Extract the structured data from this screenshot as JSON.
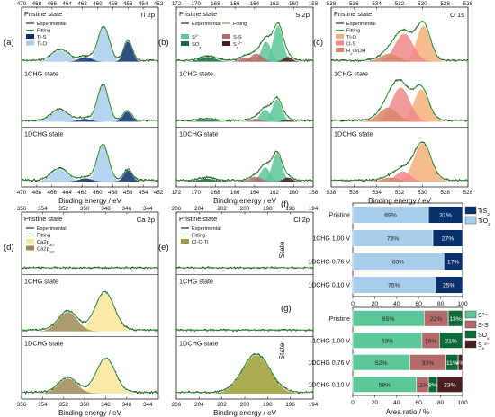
{
  "colors": {
    "experimental": "#000000",
    "fitting": "#2f9e2f",
    "ti_s": "#08306b",
    "ti_o": "#a8cdec",
    "s2": "#5cc79a",
    "sox": "#0d6b39",
    "s_s": "#b56a6a",
    "sx2": "#4a1e1e",
    "o_tio": "#f4b07a",
    "o_os": "#f08a8a",
    "o_h2o": "#d9876b",
    "ca_p12": "#9c8a55",
    "ca_p32": "#fbe69a",
    "cl_oti": "#9c9c33"
  },
  "chart_data": [
    {
      "type": "area",
      "panel": "(a)",
      "element": "Ti 2p",
      "xlabel": "Binding energy / eV",
      "xlim": [
        470,
        452
      ],
      "ticks": [
        "470",
        "468",
        "466",
        "464",
        "462",
        "460",
        "458",
        "456",
        "454",
        "452"
      ],
      "states": [
        "Pristine state",
        "1CHG state",
        "1DCHG state"
      ],
      "legend": [
        "Experimental",
        "Fitting",
        "Ti-S",
        "Ti-O"
      ],
      "components": {
        "Pristine state": [
          {
            "name": "Ti-O",
            "center": 459.2,
            "width": 0.75,
            "amp": 0.85
          },
          {
            "name": "Ti-O",
            "center": 464.9,
            "width": 1.1,
            "amp": 0.28
          },
          {
            "name": "Ti-S",
            "center": 456.0,
            "width": 0.55,
            "amp": 0.5
          },
          {
            "name": "Ti-S",
            "center": 461.6,
            "width": 0.8,
            "amp": 0.12
          }
        ],
        "1CHG state": [
          {
            "name": "Ti-O",
            "center": 459.3,
            "width": 0.72,
            "amp": 0.9
          },
          {
            "name": "Ti-O",
            "center": 465.0,
            "width": 1.1,
            "amp": 0.28
          },
          {
            "name": "Ti-S",
            "center": 456.1,
            "width": 0.55,
            "amp": 0.25
          },
          {
            "name": "Ti-S",
            "center": 461.7,
            "width": 0.8,
            "amp": 0.07
          }
        ],
        "1DCHG state": [
          {
            "name": "Ti-O",
            "center": 459.3,
            "width": 0.75,
            "amp": 0.9
          },
          {
            "name": "Ti-O",
            "center": 465.0,
            "width": 1.1,
            "amp": 0.3
          },
          {
            "name": "Ti-S",
            "center": 456.0,
            "width": 0.55,
            "amp": 0.28
          },
          {
            "name": "Ti-S",
            "center": 461.6,
            "width": 0.8,
            "amp": 0.08
          }
        ]
      }
    },
    {
      "type": "area",
      "panel": "(b)",
      "element": "S 2p",
      "xlabel": "Binding energy / eV",
      "xlim": [
        172,
        158
      ],
      "ticks": [
        "172",
        "170",
        "168",
        "166",
        "164",
        "162",
        "160",
        "158"
      ],
      "states": [
        "Pristine state",
        "1CHG state",
        "1DCHG state"
      ],
      "legend": [
        "Experimental",
        "Fitting",
        "S2-",
        "S-S",
        "SOx",
        "Sx2-"
      ],
      "components": {
        "Pristine state": [
          {
            "name": "S2-",
            "center": 161.6,
            "width": 0.5,
            "amp": 0.9
          },
          {
            "name": "S2-",
            "center": 162.8,
            "width": 0.5,
            "amp": 0.5
          },
          {
            "name": "S-S",
            "center": 163.8,
            "width": 0.6,
            "amp": 0.2
          },
          {
            "name": "S-S",
            "center": 165.0,
            "width": 0.6,
            "amp": 0.1
          },
          {
            "name": "Sx2-",
            "center": 160.6,
            "width": 0.45,
            "amp": 0.12
          },
          {
            "name": "SOx",
            "center": 168.8,
            "width": 0.8,
            "amp": 0.12
          }
        ],
        "1CHG state": [
          {
            "name": "S2-",
            "center": 161.7,
            "width": 0.5,
            "amp": 0.55
          },
          {
            "name": "S2-",
            "center": 162.9,
            "width": 0.5,
            "amp": 0.3
          },
          {
            "name": "S-S",
            "center": 163.9,
            "width": 0.6,
            "amp": 0.07
          },
          {
            "name": "Sx2-",
            "center": 160.7,
            "width": 0.45,
            "amp": 0.05
          },
          {
            "name": "SOx",
            "center": 168.9,
            "width": 0.8,
            "amp": 0.05
          }
        ],
        "1DCHG state": [
          {
            "name": "S2-",
            "center": 161.7,
            "width": 0.5,
            "amp": 0.7
          },
          {
            "name": "S2-",
            "center": 162.9,
            "width": 0.5,
            "amp": 0.35
          },
          {
            "name": "S-S",
            "center": 163.9,
            "width": 0.6,
            "amp": 0.12
          },
          {
            "name": "Sx2-",
            "center": 160.6,
            "width": 0.45,
            "amp": 0.1
          },
          {
            "name": "SOx",
            "center": 168.9,
            "width": 0.8,
            "amp": 0.07
          }
        ]
      }
    },
    {
      "type": "area",
      "panel": "(c)",
      "element": "O 1s",
      "xlabel": "Binding energy / eV",
      "xlim": [
        538,
        526
      ],
      "ticks": [
        "538",
        "536",
        "534",
        "532",
        "530",
        "528",
        "526"
      ],
      "states": [
        "Pristine state",
        "1CHG state",
        "1DCHG state"
      ],
      "legend": [
        "Experimental",
        "Fitting",
        "Ti-O",
        "O-S",
        "H2O/OH-"
      ],
      "components": {
        "Pristine state": [
          {
            "name": "Ti-O",
            "center": 529.9,
            "width": 0.6,
            "amp": 0.9
          },
          {
            "name": "O-S",
            "center": 531.6,
            "width": 0.8,
            "amp": 0.7
          },
          {
            "name": "H2O/OH-",
            "center": 532.9,
            "width": 0.8,
            "amp": 0.2
          }
        ],
        "1CHG state": [
          {
            "name": "Ti-O",
            "center": 530.1,
            "width": 0.65,
            "amp": 0.8
          },
          {
            "name": "O-S",
            "center": 531.9,
            "width": 0.8,
            "amp": 0.85
          },
          {
            "name": "H2O/OH-",
            "center": 533.0,
            "width": 0.8,
            "amp": 0.35
          }
        ],
        "1DCHG state": [
          {
            "name": "Ti-O",
            "center": 530.0,
            "width": 0.75,
            "amp": 0.95
          },
          {
            "name": "O-S",
            "center": 531.7,
            "width": 0.65,
            "amp": 0.25
          },
          {
            "name": "H2O/OH-",
            "center": 532.8,
            "width": 0.7,
            "amp": 0.1
          }
        ]
      }
    },
    {
      "type": "area",
      "panel": "(d)",
      "element": "Ca 2p",
      "xlabel": "Binding energy / eV",
      "xlim": [
        356,
        343
      ],
      "ticks": [
        "356",
        "354",
        "352",
        "350",
        "348",
        "346",
        "344"
      ],
      "states": [
        "Pristine state",
        "1CHG state",
        "1DCHG state"
      ],
      "legend": [
        "Experimental",
        "Fitting",
        "Ca2p3/2",
        "Ca2p1/2"
      ],
      "components": {
        "Pristine state": [],
        "1CHG state": [
          {
            "name": "Ca2p3/2",
            "center": 348.1,
            "width": 0.9,
            "amp": 0.9
          },
          {
            "name": "Ca2p1/2",
            "center": 351.6,
            "width": 0.9,
            "amp": 0.45
          }
        ],
        "1DCHG state": [
          {
            "name": "Ca2p3/2",
            "center": 348.0,
            "width": 0.9,
            "amp": 0.8
          },
          {
            "name": "Ca2p1/2",
            "center": 351.6,
            "width": 0.9,
            "amp": 0.35
          }
        ]
      }
    },
    {
      "type": "area",
      "panel": "(e)",
      "element": "Cl 2p",
      "xlabel": "Binding energy / eV",
      "xlim": [
        206,
        194
      ],
      "ticks": [
        "206",
        "204",
        "202",
        "200",
        "198",
        "196",
        "194"
      ],
      "states": [
        "Pristine state",
        "1CHG state",
        "1DCHG state"
      ],
      "legend": [
        "Experimental",
        "Fitting",
        "Cl-O-Ti"
      ],
      "components": {
        "Pristine state": [],
        "1CHG state": [],
        "1DCHG state": [
          {
            "name": "Cl-O-Ti",
            "center": 199.0,
            "width": 1.2,
            "amp": 0.9
          }
        ]
      }
    },
    {
      "type": "bar",
      "stacked": true,
      "orientation": "horizontal",
      "panel": "(f)",
      "ylabel": "State",
      "xlim": [
        0,
        100
      ],
      "xticks": [
        "0",
        "20",
        "40",
        "60",
        "80",
        "100"
      ],
      "categories": [
        "Pristine",
        "1CHG 1.00 V",
        "1DCHG 0.76 V",
        "1DCHG 0.10 V"
      ],
      "series": [
        {
          "name": "TiO2",
          "values": [
            69,
            73,
            83,
            75
          ],
          "labels": [
            "69%",
            "73%",
            "83%",
            "75%"
          ]
        },
        {
          "name": "TiS2",
          "values": [
            31,
            27,
            17,
            25
          ],
          "labels": [
            "31%",
            "27%",
            "17%",
            "25%"
          ]
        }
      ],
      "legend_labels": [
        "TiS2",
        "TiO2"
      ]
    },
    {
      "type": "bar",
      "stacked": true,
      "orientation": "horizontal",
      "panel": "(g)",
      "ylabel": "State",
      "xlabel": "Area ratio / %",
      "xlim": [
        0,
        100
      ],
      "xticks": [
        "0",
        "20",
        "40",
        "60",
        "80",
        "100"
      ],
      "categories": [
        "Pristine",
        "1CHG 1.00 V",
        "1DCHG 0.76 V",
        "1DCHG 0.10 V"
      ],
      "series": [
        {
          "name": "S2-",
          "values": [
            65,
            63,
            52,
            58
          ],
          "labels": [
            "65%",
            "63%",
            "52%",
            "58%"
          ]
        },
        {
          "name": "S-S",
          "values": [
            22,
            16,
            33,
            11
          ],
          "labels": [
            "22%",
            "16%",
            "33%",
            "11%"
          ]
        },
        {
          "name": "SOx",
          "values": [
            13,
            21,
            11,
            8
          ],
          "labels": [
            "13%",
            "21%",
            "11%",
            "8%"
          ]
        },
        {
          "name": "Sx2-",
          "values": [
            0,
            0,
            4,
            23
          ],
          "labels": [
            "",
            "",
            "4%",
            "23%"
          ]
        }
      ],
      "legend_labels": [
        "S2-",
        "S-S",
        "SOx",
        "Sx2-"
      ]
    }
  ]
}
